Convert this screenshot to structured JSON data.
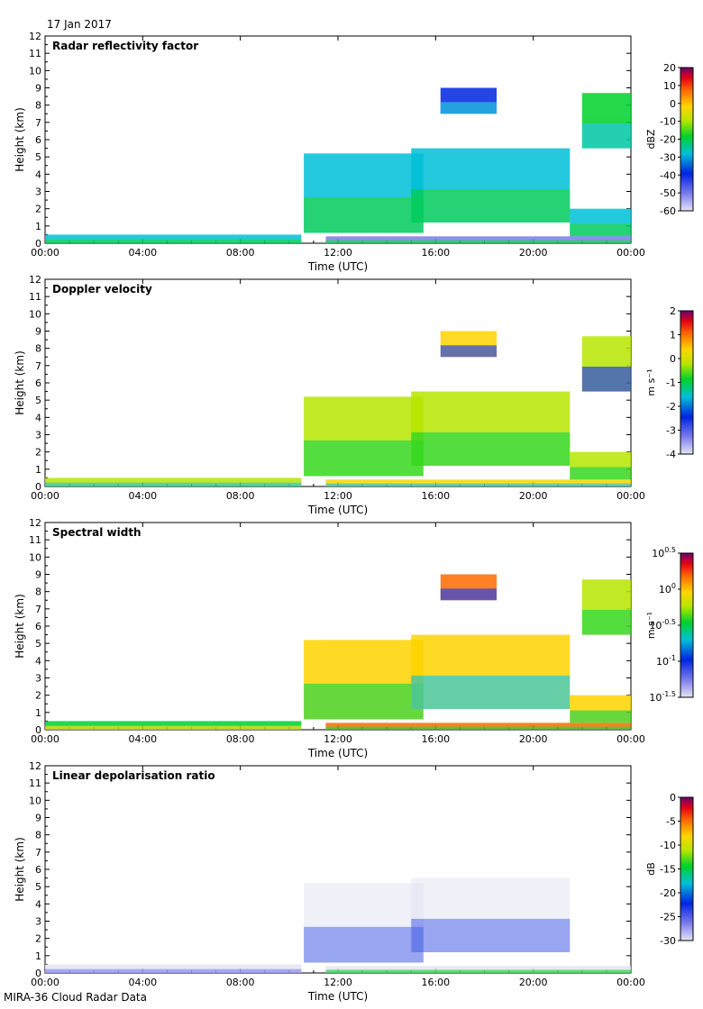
{
  "figure": {
    "date": "17 Jan 2017",
    "footer": "MIRA-36 Cloud Radar Data"
  },
  "chart_data": [
    {
      "type": "heatmap",
      "title": "Radar reflectivity factor",
      "xlabel": "Time (UTC)",
      "ylabel": "Height (km)",
      "xticks": [
        "00:00",
        "04:00",
        "08:00",
        "12:00",
        "16:00",
        "20:00",
        "00:00"
      ],
      "xlim_hours": [
        0,
        24
      ],
      "ylim": [
        0,
        12
      ],
      "yticks": [
        0,
        1,
        2,
        3,
        4,
        5,
        6,
        7,
        8,
        9,
        10,
        11,
        12
      ],
      "colorbar": {
        "label": "dBZ",
        "range": [
          -60,
          20
        ],
        "ticks": [
          "20",
          "10",
          "0",
          "-10",
          "-20",
          "-30",
          "-40",
          "-50",
          "-60"
        ]
      }
    },
    {
      "type": "heatmap",
      "title": "Doppler velocity",
      "xlabel": "Time (UTC)",
      "ylabel": "Height (km)",
      "xticks": [
        "00:00",
        "04:00",
        "08:00",
        "12:00",
        "16:00",
        "20:00",
        "00:00"
      ],
      "xlim_hours": [
        0,
        24
      ],
      "ylim": [
        0,
        12
      ],
      "yticks": [
        0,
        1,
        2,
        3,
        4,
        5,
        6,
        7,
        8,
        9,
        10,
        11,
        12
      ],
      "colorbar": {
        "label": "m s⁻¹",
        "range": [
          -4,
          2
        ],
        "ticks": [
          "2",
          "1",
          "0",
          "-1",
          "-2",
          "-3",
          "-4"
        ]
      }
    },
    {
      "type": "heatmap",
      "title": "Spectral width",
      "xlabel": "Time (UTC)",
      "ylabel": "Height (km)",
      "xticks": [
        "00:00",
        "04:00",
        "08:00",
        "12:00",
        "16:00",
        "20:00",
        "00:00"
      ],
      "xlim_hours": [
        0,
        24
      ],
      "ylim": [
        0,
        12
      ],
      "yticks": [
        0,
        1,
        2,
        3,
        4,
        5,
        6,
        7,
        8,
        9,
        10,
        11,
        12
      ],
      "colorbar": {
        "label": "m s⁻¹",
        "scale": "log10",
        "range": [
          -1.5,
          0.5
        ],
        "ticks": [
          "10^0.5",
          "10^0",
          "10^-0.5",
          "10^-1",
          "10^-1.5"
        ]
      }
    },
    {
      "type": "heatmap",
      "title": "Linear depolarisation ratio",
      "xlabel": "Time (UTC)",
      "ylabel": "Height (km)",
      "xticks": [
        "00:00",
        "04:00",
        "08:00",
        "12:00",
        "16:00",
        "20:00",
        "00:00"
      ],
      "xlim_hours": [
        0,
        24
      ],
      "ylim": [
        0,
        12
      ],
      "yticks": [
        0,
        1,
        2,
        3,
        4,
        5,
        6,
        7,
        8,
        9,
        10,
        11,
        12
      ],
      "colorbar": {
        "label": "dB",
        "range": [
          -30,
          0
        ],
        "ticks": [
          "0",
          "-5",
          "-10",
          "-15",
          "-20",
          "-25",
          "-30"
        ]
      }
    }
  ]
}
